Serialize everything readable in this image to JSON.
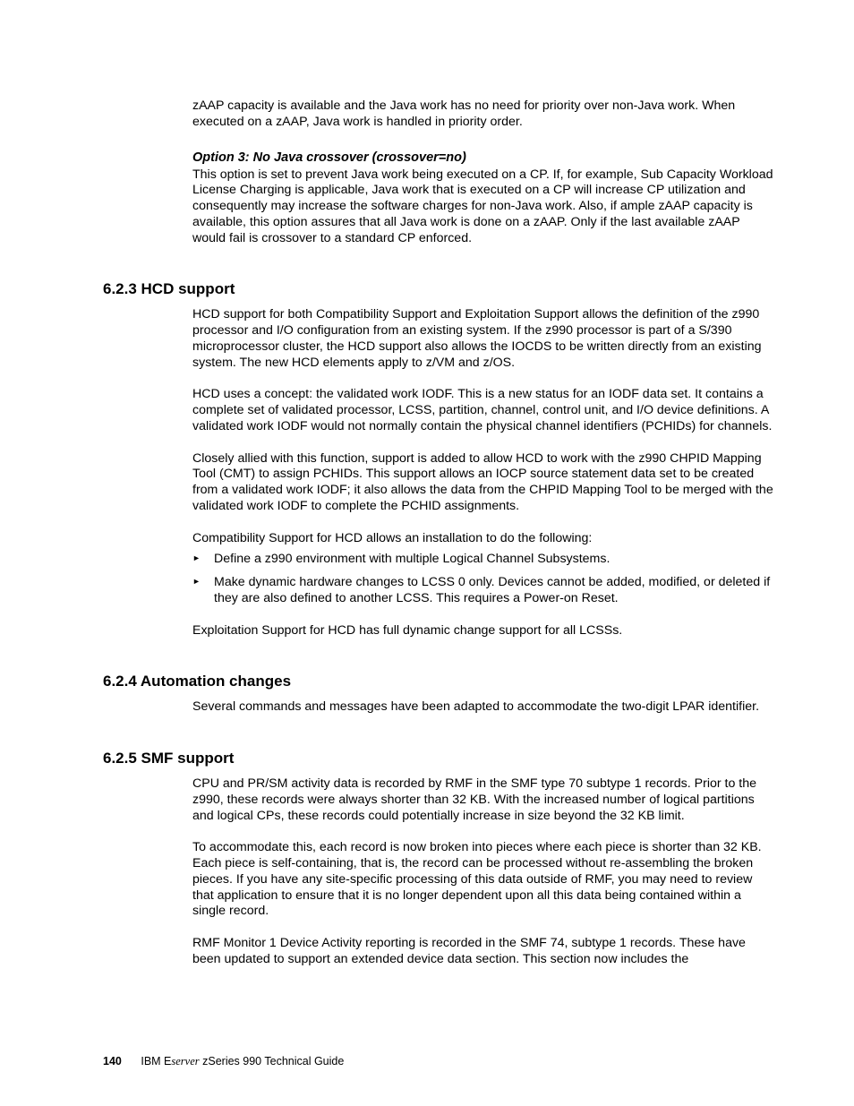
{
  "intro": {
    "p1": "zAAP capacity is available and the Java work has no need for priority over non-Java work. When executed on a zAAP, Java work is handled in priority order."
  },
  "option3": {
    "heading": "Option 3: No Java crossover (crossover=no)",
    "p1": "This option is set to prevent Java work being executed on a CP. If, for example, Sub Capacity Workload License Charging is applicable, Java work that is executed on a CP will increase CP utilization and consequently may increase the software charges for non-Java work. Also, if ample zAAP capacity is available, this option assures that all Java work is done on a zAAP. Only if the last available zAAP would fail is crossover to a standard CP enforced."
  },
  "s623": {
    "heading": "6.2.3  HCD support",
    "p1": "HCD support for both Compatibility Support and Exploitation Support allows the definition of the z990 processor and I/O configuration from an existing system. If the z990 processor is part of a S/390 microprocessor cluster, the HCD support also allows the IOCDS to be written directly from an existing system. The new HCD elements apply to z/VM and z/OS.",
    "p2": "HCD uses a concept: the validated work IODF. This is a new status for an IODF data set. It contains a complete set of validated processor, LCSS, partition, channel, control unit, and I/O device definitions. A validated work IODF would not normally contain the physical channel identifiers (PCHIDs) for channels.",
    "p3": "Closely allied with this function, support is added to allow HCD to work with the z990 CHPID Mapping Tool (CMT) to assign PCHIDs. This support allows an IOCP source statement data set to be created from a validated work IODF; it also allows the data from the CHPID Mapping Tool to be merged with the validated work IODF to complete the PCHID assignments.",
    "p4": "Compatibility Support for HCD allows an installation to do the following:",
    "b1": "Define a z990 environment with multiple Logical Channel Subsystems.",
    "b2": "Make dynamic hardware changes to LCSS 0 only. Devices cannot be added, modified, or deleted if they are also defined to another LCSS. This requires a Power-on Reset.",
    "p5": "Exploitation Support for HCD has full dynamic change support for all LCSSs."
  },
  "s624": {
    "heading": "6.2.4  Automation changes",
    "p1": "Several commands and messages have been adapted to accommodate the two-digit LPAR identifier."
  },
  "s625": {
    "heading": "6.2.5  SMF support",
    "p1": "CPU and PR/SM activity data is recorded by RMF in the SMF type 70 subtype 1 records. Prior to the z990, these records were always shorter than 32 KB. With the increased number of logical partitions and logical CPs, these records could potentially increase in size beyond the 32 KB limit.",
    "p2": "To accommodate this, each record is now broken into pieces where each piece is shorter than 32 KB. Each piece is self-containing, that is, the record can be processed without re-assembling the broken pieces. If you have any site-specific processing of this data outside of RMF, you may need to review that application to ensure that it is no longer dependent upon all this data being contained within a single record.",
    "p3": "RMF Monitor 1 Device Activity reporting is recorded in the SMF 74, subtype 1 records. These have been updated to support an extended device data section. This section now includes the"
  },
  "footer": {
    "page": "140",
    "brand_pre": "IBM ",
    "brand_e": "E",
    "brand_srv": "server",
    "title": " zSeries 990 Technical Guide"
  }
}
